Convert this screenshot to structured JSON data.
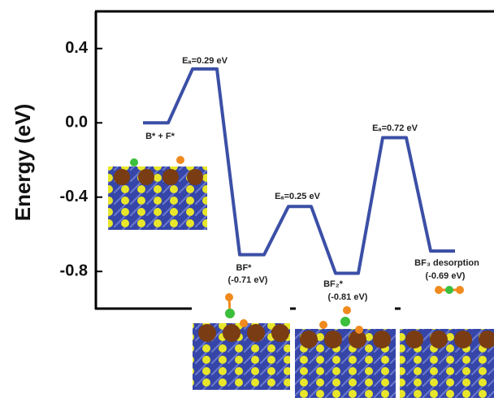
{
  "chart_data": {
    "type": "line",
    "y_label": "Energy (eV)",
    "categories": [
      null,
      null,
      null,
      null,
      null,
      null,
      null,
      null,
      null,
      null,
      null,
      null,
      null,
      null
    ],
    "series": [
      {
        "color": "#3b4fa6",
        "values": [
          0,
          0,
          0.29,
          0.29,
          -0.71,
          -0.71,
          -0.45,
          -0.45,
          -0.81,
          -0.81,
          -0.08,
          -0.08,
          -0.69,
          -0.69
        ]
      }
    ],
    "ylim": [
      -1.0,
      0.6
    ],
    "yticks": [
      {
        "value": 0.4,
        "label": "0.4"
      },
      {
        "value": 0.0,
        "label": "0.0"
      },
      {
        "value": -0.4,
        "label": "-0.4"
      },
      {
        "value": -0.8,
        "label": "-0.8"
      }
    ],
    "annotations": [
      "Eₐ=0.29 eV",
      "B* + F*",
      "BF*",
      "(-0.71 eV)",
      "Eₐ=0.25 eV",
      "BF₂*",
      "(-0.81 eV)",
      "Eₐ=0.72 eV",
      "BF₃ desorption",
      "(-0.69 eV)"
    ]
  }
}
